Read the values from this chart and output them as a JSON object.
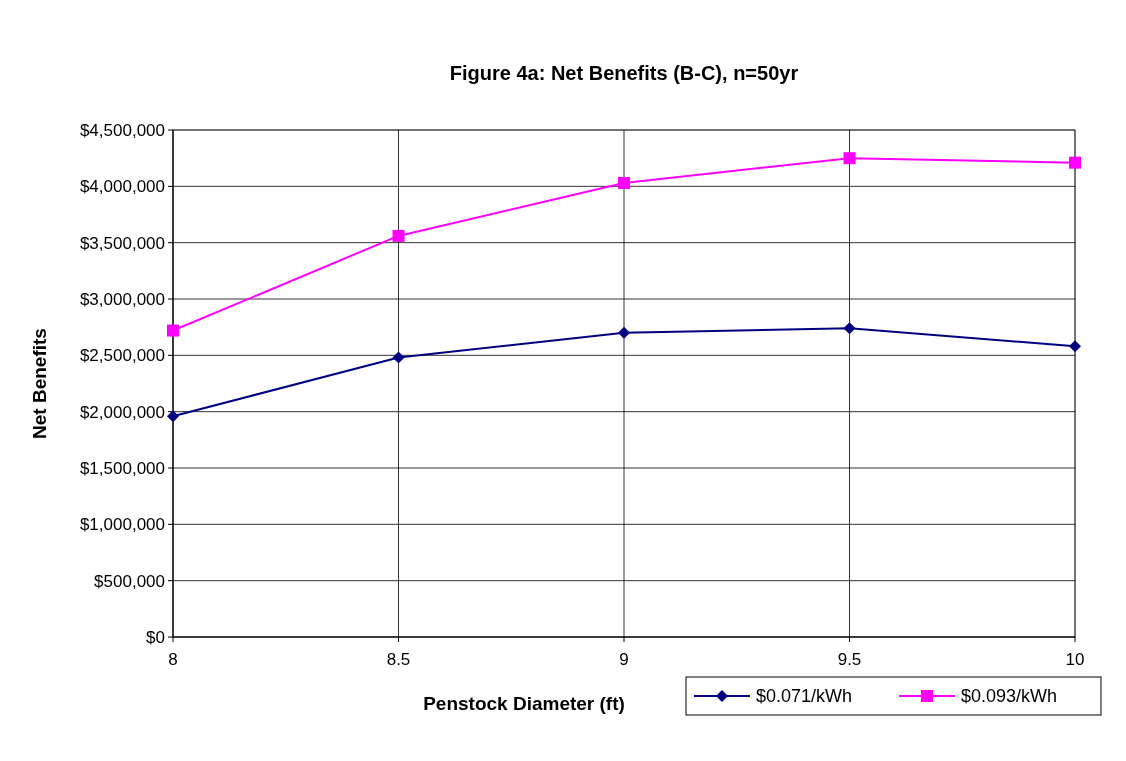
{
  "chart_data": {
    "type": "line",
    "title": "Figure 4a: Net Benefits (B-C), n=50yr",
    "xlabel": "Penstock Diameter (ft)",
    "ylabel": "Net Benefits",
    "x": [
      8,
      8.5,
      9,
      9.5,
      10
    ],
    "series": [
      {
        "name": "$0.071/kWh",
        "color": "#000080",
        "marker": "diamond",
        "values": [
          1960000,
          2480000,
          2700000,
          2740000,
          2580000
        ]
      },
      {
        "name": "$0.093/kWh",
        "color": "#ff00ff",
        "marker": "square",
        "values": [
          2720000,
          3560000,
          4030000,
          4250000,
          4210000
        ]
      }
    ],
    "xlim": [
      8,
      10
    ],
    "xticks": [
      8,
      8.5,
      9,
      9.5,
      10
    ],
    "ylim": [
      0,
      4500000
    ],
    "yticks": [
      {
        "value": 0,
        "label": "$0"
      },
      {
        "value": 500000,
        "label": "$500,000"
      },
      {
        "value": 1000000,
        "label": "$1,000,000"
      },
      {
        "value": 1500000,
        "label": "$1,500,000"
      },
      {
        "value": 2000000,
        "label": "$2,000,000"
      },
      {
        "value": 2500000,
        "label": "$2,500,000"
      },
      {
        "value": 3000000,
        "label": "$3,000,000"
      },
      {
        "value": 3500000,
        "label": "$3,500,000"
      },
      {
        "value": 4000000,
        "label": "$4,000,000"
      },
      {
        "value": 4500000,
        "label": "$4,500,000"
      }
    ],
    "grid": true,
    "legend": "bottom right",
    "line_style": "solid"
  }
}
